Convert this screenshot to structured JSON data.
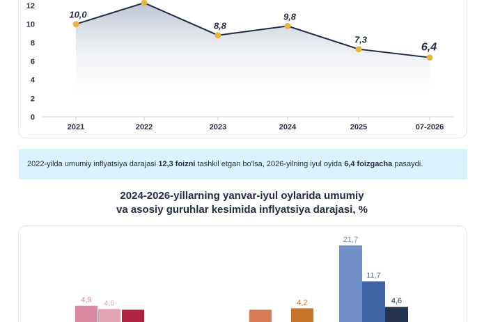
{
  "chart_data": [
    {
      "type": "area",
      "categories": [
        "2021",
        "2022",
        "2023",
        "2024",
        "2025",
        "07-2026"
      ],
      "values": [
        10.0,
        12.3,
        8.8,
        9.8,
        7.3,
        6.4
      ],
      "data_labels": [
        "10,0",
        "",
        "8,8",
        "9,8",
        "7,3",
        "6,4"
      ],
      "y_ticks": [
        "0",
        "2",
        "4",
        "6",
        "8",
        "10",
        "12"
      ],
      "ylim": [
        0,
        13
      ],
      "grid": false,
      "colors": {
        "line": "#1f2a44",
        "marker": "#e8b53c",
        "fill": "#c9cfda"
      }
    },
    {
      "type": "bar",
      "title": "2024-2026-yillarning yanvar-iyul oylarida umumiy va asosiy guruhlar kesimida inflyatsiya darajasi, %",
      "visible_bars": [
        {
          "value": 4.9,
          "label": "4,9",
          "color": "#d98aa0"
        },
        {
          "value": 4.0,
          "label": "4,0",
          "color": "#e0a4b4"
        },
        {
          "value": 3.8,
          "label": "",
          "color": "#b0233f"
        },
        {
          "value": 3.8,
          "label": "",
          "color": "#d97a56"
        },
        {
          "value": 4.2,
          "label": "4,2",
          "color": "#c8752b"
        },
        {
          "value": 21.7,
          "label": "21,7",
          "color": "#6f8fc6"
        },
        {
          "value": 11.7,
          "label": "11,7",
          "color": "#3f63a5"
        },
        {
          "value": 4.6,
          "label": "4,6",
          "color": "#24344f"
        }
      ]
    }
  ],
  "summary": {
    "p1": "2022-yilda umumiy inflyatsiya darajasi ",
    "b1": "12,3 foizni",
    "p2": " tashkil etgan bo'lsa, 2026-yilning iyul oyida ",
    "b2": "6,4 foizgacha",
    "p3": " pasaydi."
  },
  "section2": {
    "title_line1": "2024-2026-yillarning yanvar-iyul oylarida umumiy",
    "title_line2": "va asosiy guruhlar kesimida inflyatsiya darajasi, %"
  }
}
